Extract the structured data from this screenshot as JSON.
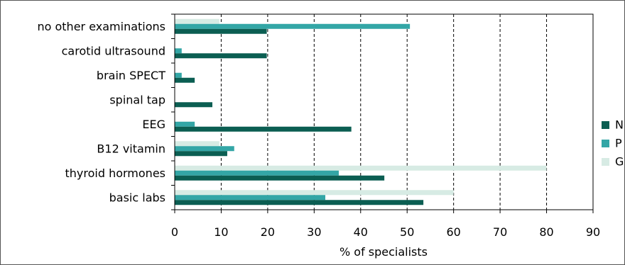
{
  "chart_data": {
    "type": "bar",
    "orientation": "horizontal",
    "categories": [
      "no other examinations",
      "carotid ultrasound",
      "brain SPECT",
      "spinal tap",
      "EEG",
      "B12 vitamin",
      "thyroid hormones",
      "basic labs"
    ],
    "series": [
      {
        "name": "N",
        "color": "#0b5e52",
        "values": [
          19.8,
          19.8,
          4.3,
          8.1,
          38.0,
          11.3,
          45.1,
          53.5
        ]
      },
      {
        "name": "P",
        "color": "#33a6a6",
        "values": [
          50.6,
          1.5,
          1.5,
          0,
          4.3,
          12.8,
          35.3,
          32.4
        ]
      },
      {
        "name": "G",
        "color": "#d7ebe4",
        "values": [
          9.6,
          0,
          0,
          0,
          0,
          9.6,
          80.0,
          60.0
        ]
      }
    ],
    "xlabel": "% of specialists",
    "xlim": [
      0,
      90
    ],
    "xticks": [
      "0",
      "10",
      "20",
      "30",
      "40",
      "50",
      "60",
      "70",
      "80",
      "90"
    ],
    "grid": "vertical dashed",
    "legend": "right"
  }
}
